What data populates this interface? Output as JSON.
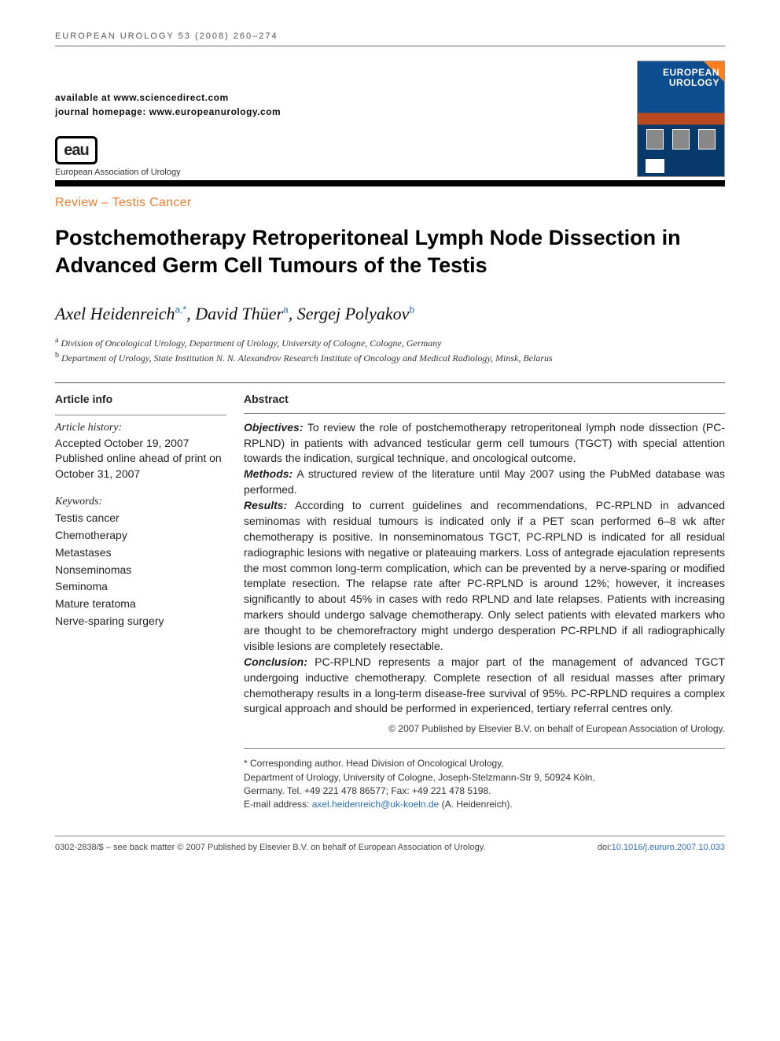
{
  "running_head": "european urology 53 (2008) 260–274",
  "availability": {
    "line1": "available at www.sciencedirect.com",
    "line2": "journal homepage: www.europeanurology.com"
  },
  "eau": {
    "logo_text": "eau",
    "subtitle": "European Association of Urology"
  },
  "journal_cover": {
    "title_line1": "EUROPEAN",
    "title_line2": "UROLOGY"
  },
  "article_type": "Review – Testis Cancer",
  "title": "Postchemotherapy Retroperitoneal Lymph Node Dissection in Advanced Germ Cell Tumours of the Testis",
  "authors_html": "Axel Heidenreich|a,*|, David Thüer|a|, Sergej Polyakov|b|",
  "authors": [
    {
      "name": "Axel Heidenreich",
      "aff": "a,*"
    },
    {
      "name": "David Thüer",
      "aff": "a"
    },
    {
      "name": "Sergej Polyakov",
      "aff": "b"
    }
  ],
  "affiliations": [
    {
      "label": "a",
      "text": "Division of Oncological Urology, Department of Urology, University of Cologne, Cologne, Germany"
    },
    {
      "label": "b",
      "text": "Department of Urology, State Institution N. N. Alexandrov Research Institute of Oncology and Medical Radiology, Minsk, Belarus"
    }
  ],
  "article_info": {
    "heading": "Article info",
    "history_label": "Article history:",
    "history_lines": [
      "Accepted October 19, 2007",
      "Published online ahead of print on October 31, 2007"
    ],
    "keywords_label": "Keywords:",
    "keywords": [
      "Testis cancer",
      "Chemotherapy",
      "Metastases",
      "Nonseminomas",
      "Seminoma",
      "Mature teratoma",
      "Nerve-sparing surgery"
    ]
  },
  "abstract": {
    "heading": "Abstract",
    "sections": [
      {
        "label": "Objectives:",
        "text": "To review the role of postchemotherapy retroperitoneal lymph node dissection (PC-RPLND) in patients with advanced testicular germ cell tumours (TGCT) with special attention towards the indication, surgical technique, and oncological outcome."
      },
      {
        "label": "Methods:",
        "text": "A structured review of the literature until May 2007 using the PubMed database was performed."
      },
      {
        "label": "Results:",
        "text": "According to current guidelines and recommendations, PC-RPLND in advanced seminomas with residual tumours is indicated only if a PET scan performed 6–8 wk after chemotherapy is positive. In nonseminomatous TGCT, PC-RPLND is indicated for all residual radiographic lesions with negative or plateauing markers. Loss of antegrade ejaculation represents the most common long-term complication, which can be prevented by a nerve-sparing or modified template resection. The relapse rate after PC-RPLND is around 12%; however, it increases significantly to about 45% in cases with redo RPLND and late relapses. Patients with increasing markers should undergo salvage chemotherapy. Only select patients with elevated markers who are thought to be chemorefractory might undergo desperation PC-RPLND if all radiographically visible lesions are completely resectable."
      },
      {
        "label": "Conclusion:",
        "text": "PC-RPLND represents a major part of the management of advanced TGCT undergoing inductive chemotherapy. Complete resection of all residual masses after primary chemotherapy results in a long-term disease-free survival of 95%. PC-RPLND requires a complex surgical approach and should be performed in experienced, tertiary referral centres only."
      }
    ],
    "copyright": "© 2007 Published by Elsevier B.V. on behalf of European Association of Urology."
  },
  "corresponding": {
    "star": "*",
    "lines": [
      "Corresponding author. Head Division of Oncological Urology,",
      "Department of Urology, University of Cologne, Joseph-Stelzmann-Str 9, 50924 Köln,",
      "Germany. Tel. +49 221 478 86577; Fax: +49 221 478 5198."
    ],
    "email_label": "E-mail address: ",
    "email": "axel.heidenreich@uk-koeln.de",
    "email_suffix": " (A. Heidenreich)."
  },
  "footer": {
    "left": "0302-2838/$ – see back matter © 2007 Published by Elsevier B.V. on behalf of European Association of Urology.",
    "doi_label": "doi:",
    "doi": "10.1016/j.eururo.2007.10.033"
  },
  "colors": {
    "accent_orange": "#ed7d31",
    "link_blue": "#2a6ebb",
    "rule_black": "#000000",
    "text": "#222222"
  }
}
